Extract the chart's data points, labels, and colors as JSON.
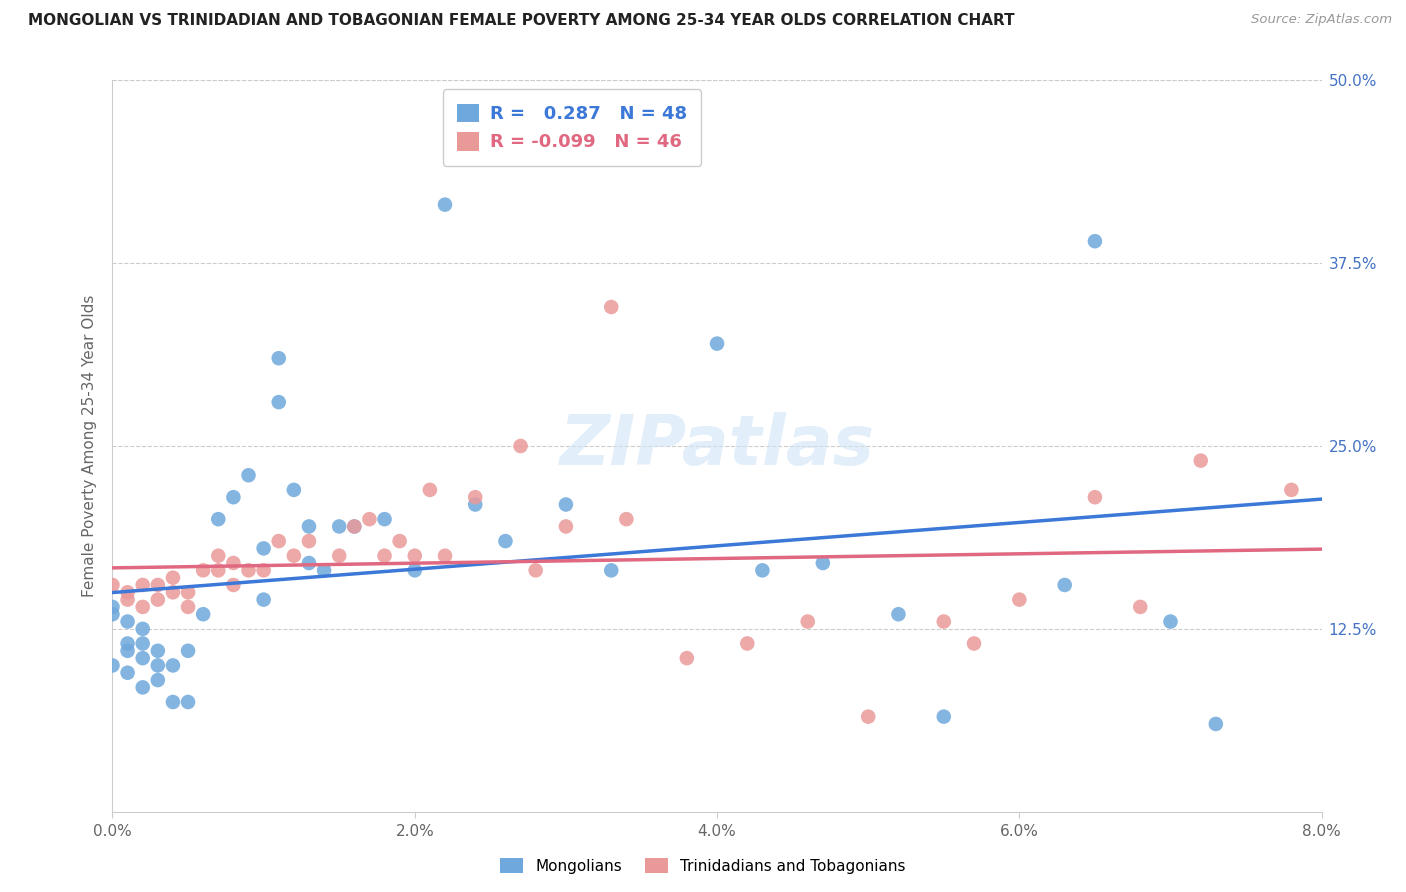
{
  "title": "MONGOLIAN VS TRINIDADIAN AND TOBAGONIAN FEMALE POVERTY AMONG 25-34 YEAR OLDS CORRELATION CHART",
  "source": "Source: ZipAtlas.com",
  "ylabel": "Female Poverty Among 25-34 Year Olds",
  "xlim": [
    0.0,
    0.08
  ],
  "ylim": [
    0.0,
    0.5
  ],
  "xticks": [
    0.0,
    0.02,
    0.04,
    0.06,
    0.08
  ],
  "yticks": [
    0.0,
    0.125,
    0.25,
    0.375,
    0.5
  ],
  "ytick_labels_right": [
    "",
    "12.5%",
    "25.0%",
    "37.5%",
    "50.0%"
  ],
  "xtick_labels": [
    "0.0%",
    "2.0%",
    "4.0%",
    "6.0%",
    "8.0%"
  ],
  "mongolian_color": "#6fa8dc",
  "trinidadian_color": "#ea9999",
  "mongolian_line_color": "#3c78d8",
  "trinidadian_line_color": "#e06880",
  "dashed_line_color": "#aaaaaa",
  "R_mongolian": 0.287,
  "N_mongolian": 48,
  "R_trinidadian": -0.099,
  "N_trinidadian": 46,
  "watermark": "ZIPatlas",
  "mongolian_x": [
    0.0,
    0.0,
    0.0,
    0.001,
    0.001,
    0.001,
    0.001,
    0.002,
    0.002,
    0.002,
    0.002,
    0.003,
    0.003,
    0.003,
    0.004,
    0.004,
    0.005,
    0.005,
    0.006,
    0.007,
    0.008,
    0.009,
    0.01,
    0.01,
    0.011,
    0.011,
    0.012,
    0.013,
    0.013,
    0.014,
    0.015,
    0.016,
    0.018,
    0.02,
    0.022,
    0.024,
    0.026,
    0.03,
    0.033,
    0.04,
    0.043,
    0.047,
    0.052,
    0.055,
    0.063,
    0.065,
    0.07,
    0.073
  ],
  "mongolian_y": [
    0.14,
    0.135,
    0.1,
    0.13,
    0.115,
    0.11,
    0.095,
    0.125,
    0.115,
    0.105,
    0.085,
    0.11,
    0.1,
    0.09,
    0.1,
    0.075,
    0.11,
    0.075,
    0.135,
    0.2,
    0.215,
    0.23,
    0.145,
    0.18,
    0.28,
    0.31,
    0.22,
    0.17,
    0.195,
    0.165,
    0.195,
    0.195,
    0.2,
    0.165,
    0.415,
    0.21,
    0.185,
    0.21,
    0.165,
    0.32,
    0.165,
    0.17,
    0.135,
    0.065,
    0.155,
    0.39,
    0.13,
    0.06
  ],
  "trinidadian_x": [
    0.0,
    0.001,
    0.001,
    0.002,
    0.002,
    0.003,
    0.003,
    0.004,
    0.004,
    0.005,
    0.005,
    0.006,
    0.007,
    0.007,
    0.008,
    0.008,
    0.009,
    0.01,
    0.011,
    0.012,
    0.013,
    0.015,
    0.016,
    0.017,
    0.018,
    0.019,
    0.02,
    0.021,
    0.022,
    0.024,
    0.027,
    0.028,
    0.03,
    0.033,
    0.034,
    0.038,
    0.042,
    0.046,
    0.05,
    0.055,
    0.057,
    0.06,
    0.065,
    0.068,
    0.072,
    0.078
  ],
  "trinidadian_y": [
    0.155,
    0.15,
    0.145,
    0.155,
    0.14,
    0.155,
    0.145,
    0.16,
    0.15,
    0.15,
    0.14,
    0.165,
    0.175,
    0.165,
    0.17,
    0.155,
    0.165,
    0.165,
    0.185,
    0.175,
    0.185,
    0.175,
    0.195,
    0.2,
    0.175,
    0.185,
    0.175,
    0.22,
    0.175,
    0.215,
    0.25,
    0.165,
    0.195,
    0.345,
    0.2,
    0.105,
    0.115,
    0.13,
    0.065,
    0.13,
    0.115,
    0.145,
    0.215,
    0.14,
    0.24,
    0.22
  ]
}
